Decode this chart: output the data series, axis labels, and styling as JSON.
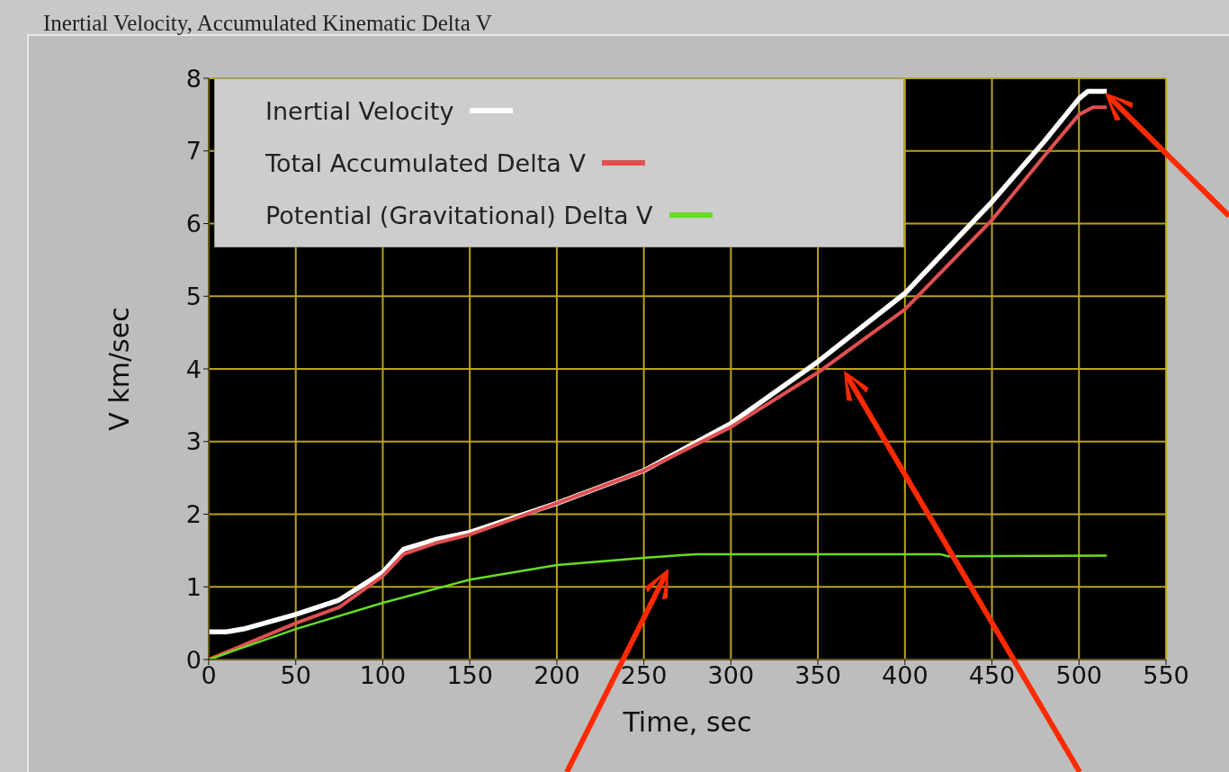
{
  "chart_data": {
    "type": "line",
    "title": "Inertial Velocity, Accumulated Kinematic Delta V",
    "xlabel": "Time, sec",
    "ylabel": "V km/sec",
    "xlim": [
      0,
      550
    ],
    "xticks": [
      0,
      50,
      100,
      150,
      200,
      250,
      300,
      350,
      400,
      450,
      500,
      550
    ],
    "ylim": [
      0,
      8
    ],
    "yticks": [
      0,
      1,
      2,
      3,
      4,
      5,
      6,
      7,
      8
    ],
    "grid": true,
    "legend": "top left",
    "marker": "none",
    "line_style": "solid",
    "series": [
      {
        "name": "Inertial Velocity",
        "color": "#ffffff",
        "x": [
          0,
          10,
          20,
          50,
          75,
          100,
          112,
          130,
          150,
          200,
          250,
          300,
          350,
          400,
          450,
          480,
          500,
          505,
          516
        ],
        "values": [
          0.38,
          0.38,
          0.42,
          0.62,
          0.82,
          1.2,
          1.52,
          1.65,
          1.75,
          2.15,
          2.6,
          3.25,
          4.1,
          5.04,
          6.3,
          7.13,
          7.72,
          7.82,
          7.82
        ]
      },
      {
        "name": "Total Accumulated Delta V",
        "color": "#e05050",
        "x": [
          0,
          50,
          75,
          100,
          112,
          130,
          150,
          200,
          250,
          300,
          350,
          400,
          450,
          480,
          500,
          508,
          516
        ],
        "values": [
          0,
          0.5,
          0.72,
          1.15,
          1.45,
          1.6,
          1.72,
          2.15,
          2.6,
          3.2,
          3.95,
          4.82,
          6.05,
          6.93,
          7.5,
          7.6,
          7.6
        ]
      },
      {
        "name": "Potential (Gravitational) Delta V",
        "color": "#66dd22",
        "x": [
          0,
          50,
          100,
          150,
          200,
          250,
          280,
          350,
          420,
          425,
          516
        ],
        "values": [
          0,
          0.42,
          0.78,
          1.1,
          1.3,
          1.4,
          1.45,
          1.45,
          1.45,
          1.42,
          1.43
        ]
      }
    ]
  }
}
